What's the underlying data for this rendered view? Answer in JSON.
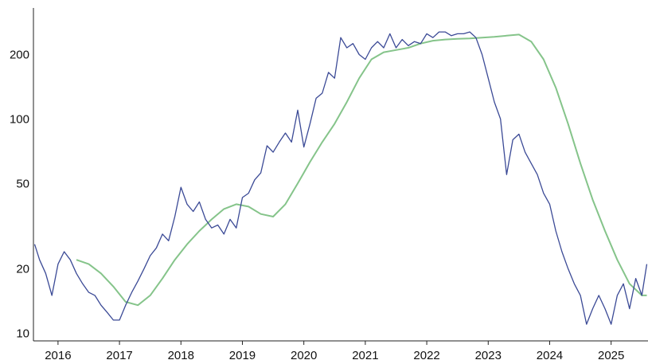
{
  "chart_data": {
    "type": "line",
    "title": "",
    "xlabel": "",
    "ylabel": "",
    "yscale": "log",
    "ylim": [
      9.2,
      330
    ],
    "xlim": [
      2015.6,
      2025.6
    ],
    "grid": false,
    "colors": {
      "price": "#3b4a96",
      "moving_average": "#85c48a"
    },
    "y_ticks": [
      {
        "value": 10,
        "label": "10"
      },
      {
        "value": 20,
        "label": "20"
      },
      {
        "value": 50,
        "label": "50"
      },
      {
        "value": 100,
        "label": "100"
      },
      {
        "value": 200,
        "label": "200"
      }
    ],
    "x_ticks": [
      {
        "value": 2016,
        "label": "2016"
      },
      {
        "value": 2017,
        "label": "2017"
      },
      {
        "value": 2018,
        "label": "2018"
      },
      {
        "value": 2019,
        "label": "2019"
      },
      {
        "value": 2020,
        "label": "2020"
      },
      {
        "value": 2021,
        "label": "2021"
      },
      {
        "value": 2022,
        "label": "2022"
      },
      {
        "value": 2023,
        "label": "2023"
      },
      {
        "value": 2024,
        "label": "2024"
      },
      {
        "value": 2025,
        "label": "2025"
      }
    ],
    "series": [
      {
        "key": "price",
        "x": [
          2015.62,
          2015.7,
          2015.8,
          2015.9,
          2016.0,
          2016.1,
          2016.2,
          2016.3,
          2016.4,
          2016.5,
          2016.6,
          2016.7,
          2016.8,
          2016.9,
          2017.0,
          2017.1,
          2017.2,
          2017.3,
          2017.4,
          2017.5,
          2017.6,
          2017.7,
          2017.8,
          2017.9,
          2018.0,
          2018.1,
          2018.2,
          2018.3,
          2018.4,
          2018.5,
          2018.6,
          2018.7,
          2018.8,
          2018.9,
          2019.0,
          2019.1,
          2019.2,
          2019.3,
          2019.4,
          2019.5,
          2019.6,
          2019.7,
          2019.8,
          2019.9,
          2020.0,
          2020.1,
          2020.2,
          2020.3,
          2020.4,
          2020.5,
          2020.6,
          2020.7,
          2020.8,
          2020.9,
          2021.0,
          2021.1,
          2021.2,
          2021.3,
          2021.4,
          2021.5,
          2021.6,
          2021.7,
          2021.8,
          2021.9,
          2022.0,
          2022.1,
          2022.2,
          2022.3,
          2022.4,
          2022.5,
          2022.6,
          2022.7,
          2022.8,
          2022.9,
          2023.0,
          2023.1,
          2023.2,
          2023.3,
          2023.4,
          2023.5,
          2023.6,
          2023.7,
          2023.8,
          2023.9,
          2024.0,
          2024.1,
          2024.2,
          2024.3,
          2024.4,
          2024.5,
          2024.6,
          2024.7,
          2024.8,
          2024.9,
          2025.0,
          2025.1,
          2025.2,
          2025.3,
          2025.4,
          2025.5,
          2025.58
        ],
        "y": [
          26,
          22,
          19,
          15,
          21,
          24,
          22,
          19,
          17,
          15.5,
          15,
          13.5,
          12.5,
          11.5,
          11.5,
          13.5,
          15.5,
          17.5,
          20,
          23,
          25,
          29,
          27,
          35,
          48,
          40,
          37,
          41,
          34,
          31,
          32,
          29,
          34,
          31,
          43,
          45,
          52,
          56,
          75,
          70,
          78,
          86,
          78,
          110,
          74,
          95,
          125,
          132,
          165,
          155,
          240,
          215,
          225,
          200,
          190,
          215,
          230,
          215,
          250,
          215,
          235,
          220,
          230,
          225,
          250,
          240,
          255,
          255,
          245,
          250,
          250,
          255,
          240,
          200,
          155,
          120,
          100,
          55,
          80,
          85,
          70,
          62,
          55,
          45,
          40,
          30,
          24,
          20,
          17,
          15,
          11,
          13,
          15,
          13,
          11,
          15,
          17,
          13,
          18,
          15,
          21
        ]
      },
      {
        "key": "moving_average",
        "x": [
          2016.3,
          2016.5,
          2016.7,
          2016.9,
          2017.1,
          2017.3,
          2017.5,
          2017.7,
          2017.9,
          2018.1,
          2018.3,
          2018.5,
          2018.7,
          2018.9,
          2019.1,
          2019.3,
          2019.5,
          2019.7,
          2019.9,
          2020.1,
          2020.3,
          2020.5,
          2020.7,
          2020.9,
          2021.1,
          2021.3,
          2021.5,
          2021.7,
          2021.9,
          2022.1,
          2022.3,
          2022.5,
          2022.7,
          2022.9,
          2023.1,
          2023.3,
          2023.5,
          2023.7,
          2023.9,
          2024.1,
          2024.3,
          2024.5,
          2024.7,
          2024.9,
          2025.1,
          2025.3,
          2025.5,
          2025.58
        ],
        "y": [
          22,
          21,
          19,
          16.5,
          14,
          13.5,
          15,
          18,
          22,
          26,
          30,
          34,
          38,
          40,
          39,
          36,
          35,
          40,
          50,
          63,
          78,
          95,
          120,
          155,
          190,
          205,
          210,
          215,
          225,
          232,
          235,
          237,
          238,
          240,
          242,
          245,
          248,
          230,
          190,
          140,
          95,
          62,
          42,
          30,
          22,
          17,
          15,
          15
        ]
      }
    ]
  }
}
